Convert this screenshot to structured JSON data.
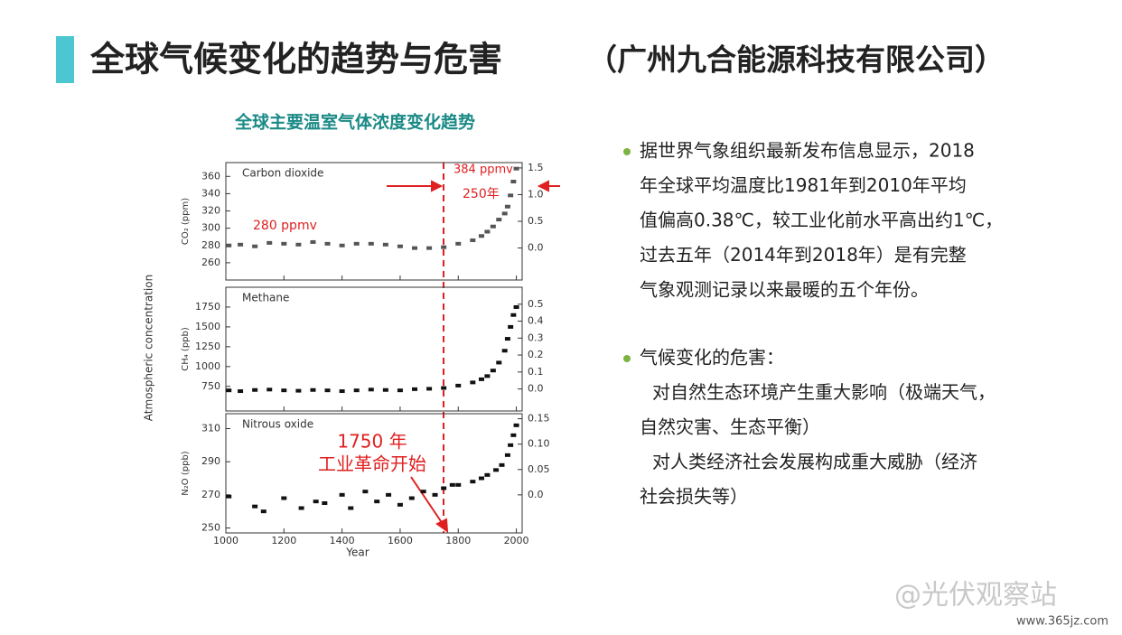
{
  "header": {
    "title": "全球气候变化的趋势与危害",
    "company": "（广州九合能源科技有限公司）"
  },
  "figure": {
    "title": "全球主要温室气体浓度变化趋势",
    "ylabel": "Atmospheric concentration"
  },
  "chart_data": [
    {
      "type": "scatter",
      "label": "Carbon dioxide",
      "ylabel": "CO₂ (ppm)",
      "color": "#555555",
      "x": [
        1010,
        1050,
        1100,
        1150,
        1200,
        1250,
        1300,
        1350,
        1400,
        1450,
        1500,
        1550,
        1600,
        1650,
        1700,
        1750,
        1800,
        1850,
        1880,
        1900,
        1920,
        1940,
        1960,
        1970,
        1980,
        1990,
        2000
      ],
      "values": [
        280,
        281,
        279,
        283,
        282,
        281,
        284,
        282,
        280,
        282,
        282,
        281,
        279,
        277,
        277,
        278,
        282,
        286,
        291,
        296,
        302,
        310,
        317,
        325,
        338,
        354,
        369
      ],
      "xlim": [
        1000,
        2020
      ],
      "ylim": [
        240,
        376
      ],
      "yticks": [
        260,
        280,
        300,
        320,
        340,
        360
      ],
      "y2lim": [
        -0.6,
        1.6
      ],
      "y2ticks": [
        {
          "value": 0,
          "label": "0.0"
        },
        0.5,
        {
          "value": 1,
          "label": "1.0"
        },
        1.5
      ],
      "annotations": [
        "384 ppmv",
        "250年",
        "280 ppmv"
      ]
    },
    {
      "type": "scatter",
      "label": "Methane",
      "ylabel": "CH₄ (ppb)",
      "color": "#111111",
      "x": [
        1010,
        1050,
        1100,
        1150,
        1200,
        1250,
        1300,
        1350,
        1400,
        1450,
        1500,
        1550,
        1600,
        1650,
        1700,
        1750,
        1800,
        1850,
        1880,
        1900,
        1920,
        1940,
        1960,
        1970,
        1980,
        1990,
        2000
      ],
      "values": [
        700,
        690,
        705,
        710,
        700,
        695,
        705,
        700,
        690,
        700,
        710,
        705,
        700,
        715,
        720,
        730,
        760,
        800,
        840,
        880,
        950,
        1050,
        1200,
        1350,
        1500,
        1650,
        1750
      ],
      "xlim": [
        1000,
        2020
      ],
      "ylim": [
        440,
        2000
      ],
      "yticks": [
        750,
        1000,
        1250,
        1500,
        1750
      ],
      "y2lim": [
        -0.13,
        0.6
      ],
      "y2ticks": [
        {
          "value": 0,
          "label": "0.0"
        },
        0.1,
        0.2,
        0.3,
        0.4,
        0.5
      ],
      "annotations": []
    },
    {
      "type": "scatter",
      "label": "Nitrous oxide",
      "ylabel": "N₂O (ppb)",
      "xlabel": "Year",
      "color": "#111111",
      "x": [
        1010,
        1100,
        1130,
        1200,
        1260,
        1310,
        1340,
        1400,
        1430,
        1480,
        1520,
        1560,
        1600,
        1640,
        1680,
        1720,
        1750,
        1780,
        1800,
        1850,
        1880,
        1900,
        1930,
        1950,
        1970,
        1980,
        1990,
        2000
      ],
      "values": [
        269,
        263,
        260,
        268,
        262,
        266,
        265,
        270,
        262,
        272,
        266,
        270,
        264,
        268,
        272,
        270,
        274,
        276,
        276,
        278,
        280,
        282,
        285,
        288,
        294,
        300,
        306,
        312
      ],
      "xlim": [
        1000,
        2020
      ],
      "ylim": [
        247,
        319
      ],
      "yticks": [
        250,
        270,
        290,
        310
      ],
      "xticks": [
        1000,
        1200,
        1400,
        1600,
        1800,
        2000
      ],
      "y2lim": [
        -0.075,
        0.16
      ],
      "y2ticks": [
        {
          "value": 0,
          "label": "0.0"
        },
        0.05,
        {
          "value": 0.1,
          "label": "0.10"
        },
        0.15
      ],
      "annotations": [
        "1750 年",
        "工业革命开始"
      ]
    }
  ],
  "body": {
    "bullets": [
      {
        "lines": [
          "据世界气象组织最新发布信息显示，2018",
          "年全球平均温度比1981年到2010年平均",
          "值偏高0.38℃，较工业化前水平高出约1℃，",
          "过去五年（2014年到2018年）是有完整",
          "气象观测记录以来最暖的五个年份。"
        ]
      },
      {
        "lines": [
          "气候变化的危害：",
          "对自然生态环境产生重大影响（极端天气，",
          "自然灾害、生态平衡）",
          "对人类经济社会发展构成重大威胁（经济",
          "社会损失等）"
        ]
      }
    ]
  },
  "watermark": {
    "handle": "@光伏观察站",
    "site": "www.365jz.com"
  }
}
